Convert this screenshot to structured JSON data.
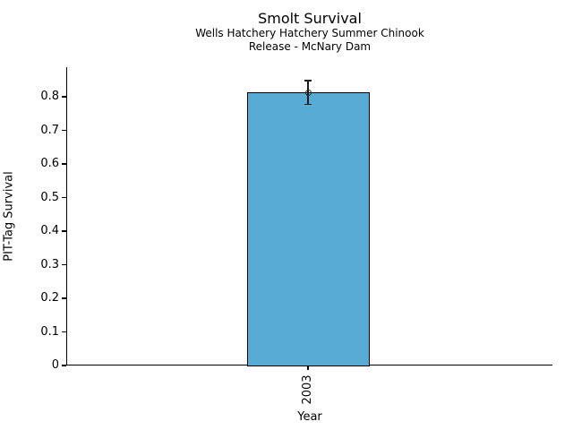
{
  "figure": {
    "background": "#ffffff",
    "text_color": "#000000",
    "spine_color": "#000000"
  },
  "chart_data": {
    "type": "bar",
    "title": "Smolt Survival",
    "subtitle_lines": [
      "Wells Hatchery Hatchery Summer Chinook",
      "Release - McNary Dam"
    ],
    "xlabel": "Year",
    "ylabel": "PIT-Tag Survival",
    "categories": [
      "2003"
    ],
    "values": [
      0.813
    ],
    "error_bars": {
      "upper": [
        0.848
      ],
      "lower": [
        0.777
      ]
    },
    "marker": "open-circle",
    "bar_color": "#58abd4",
    "bar_edge_color": "#000000",
    "ylim": [
      0,
      0.888
    ],
    "yticks": [
      0,
      0.1,
      0.2,
      0.3,
      0.4,
      0.5,
      0.6,
      0.7,
      0.8
    ],
    "ytick_labels": [
      "0",
      "0.1",
      "0.2",
      "0.3",
      "0.4",
      "0.5",
      "0.6",
      "0.7",
      "0.8"
    ],
    "grid": false,
    "legend": null
  }
}
